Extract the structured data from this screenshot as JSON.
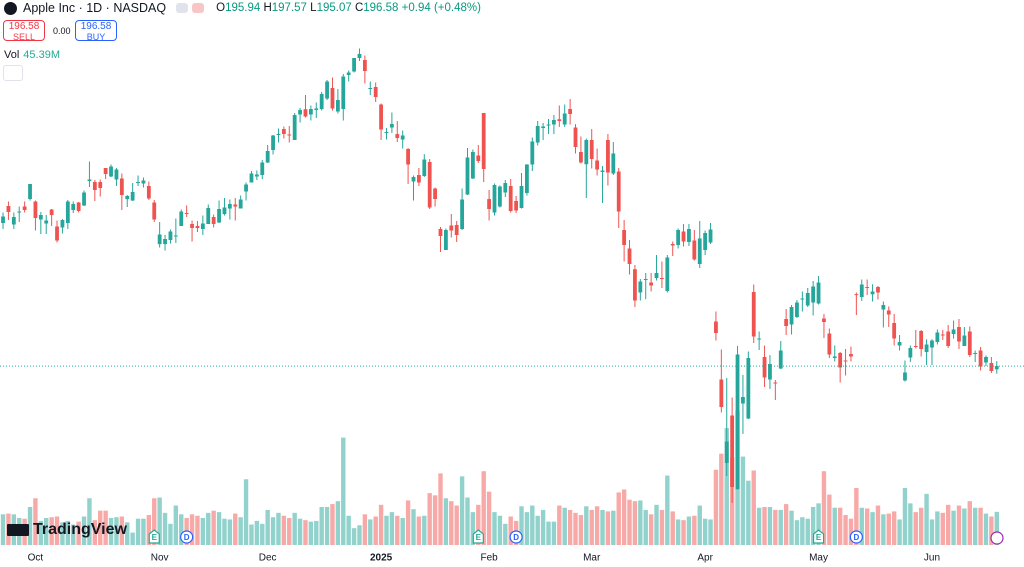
{
  "header": {
    "symbol": "Apple Inc · 1D · NASDAQ",
    "o_label": "O",
    "open": "195.94",
    "h_label": "H",
    "high": "197.57",
    "l_label": "L",
    "low": "195.07",
    "c_label": "C",
    "close": "196.58",
    "change": "+0.94 (+0.48%)",
    "sell_price": "196.58",
    "sell": "SELL",
    "spread": "0.00",
    "buy_price": "196.58",
    "buy": "BUY",
    "volume_label": "Vol",
    "volume": "45.39M",
    "brand": "TradingView"
  },
  "chart_data": {
    "type": "candlestick",
    "up_color": "#26a69a",
    "down_color": "#ef5350",
    "volume_up_color": "#92d2cc",
    "volume_down_color": "#f7a9a7",
    "xlim": [
      -0.56,
      189.04
    ],
    "ylim": [
      160.8,
      269.8
    ],
    "volume_ylim": [
      0,
      746
    ],
    "last_price_line": true,
    "xticks": [
      {
        "value": 6,
        "label": "Oct"
      },
      {
        "value": 29,
        "label": "Nov"
      },
      {
        "value": 49,
        "label": "Dec"
      },
      {
        "value": 70,
        "label": "2025"
      },
      {
        "value": 90,
        "label": "Feb"
      },
      {
        "value": 109,
        "label": "Mar"
      },
      {
        "value": 130,
        "label": "Apr"
      },
      {
        "value": 151,
        "label": "May"
      },
      {
        "value": 172,
        "label": "Jun"
      }
    ],
    "events": [
      "E",
      "D",
      "E",
      "D",
      "E",
      "D"
    ],
    "open": [
      225.2,
      228.6,
      224.9,
      227.3,
      228.5,
      230.0,
      229.5,
      225.9,
      225.1,
      227.9,
      224.5,
      224.3,
      225.2,
      227.8,
      229.3,
      228.7,
      233.6,
      233.4,
      233.4,
      236.2,
      234.5,
      233.9,
      234.1,
      229.98,
      229.7,
      233.3,
      233.1,
      232.6,
      229.3,
      220.97,
      220.99,
      221.8,
      222.6,
      224.6,
      227.2,
      225.0,
      224.6,
      224.0,
      225.0,
      226.4,
      225.3,
      226.98,
      228.1,
      228.9,
      228.1,
      231.5,
      233.3,
      234.5,
      234.8,
      237.3,
      239.8,
      242.9,
      243.99,
      242.9,
      241.8,
      246.9,
      247.96,
      246.9,
      247.8,
      247.99,
      250.1,
      252.2,
      247.5,
      248.0,
      254.8,
      255.5,
      258.2,
      257.8,
      252.2,
      252.4,
      248.9,
      243.4,
      244.3,
      242.98,
      241.9,
      240.0,
      233.5,
      234.8,
      234.6,
      237.4,
      232.1,
      224.0,
      219.8,
      224.7,
      224.8,
      224.0,
      230.9,
      234.1,
      238.7,
      247.2,
      229.99,
      227.3,
      228.5,
      231.3,
      232.6,
      229.6,
      228.2,
      231.2,
      236.9,
      241.3,
      244.2,
      244.7,
      244.9,
      245.95,
      244.9,
      248.0,
      244.3,
      239.4,
      236.95,
      241.8,
      237.7,
      235.4,
      241.8,
      235.1,
      235.5,
      223.8,
      220.1,
      215.95,
      211.3,
      213.8,
      213.3,
      214.2,
      214.2,
      211.6,
      221.0,
      220.8,
      223.5,
      221.4,
      221.7,
      217.0,
      219.8,
      221.3,
      205.5,
      193.9,
      177.2,
      186.7,
      171.95,
      189.1,
      186.1,
      211.4,
      201.9,
      198.4,
      193.9,
      193.3,
      196.1,
      206.0,
      204.9,
      206.4,
      210.0,
      208.7,
      209.3,
      209.1,
      206.1,
      203.1,
      198.2,
      199.2,
      197.7,
      199.0,
      210.97,
      210.4,
      212.4,
      210.95,
      212.4,
      207.9,
      207.7,
      205.2,
      200.7,
      193.7,
      198.3,
      200.6,
      203.6,
      199.4,
      200.3,
      201.4,
      202.9,
      203.5,
      203.0,
      204.4,
      200.6,
      203.5,
      199.1,
      199.7,
      197.3,
      197.2,
      195.94
    ],
    "high": [
      227.3,
      229.5,
      227.3,
      228.5,
      229.5,
      233.0,
      229.7,
      227.4,
      226.8,
      228.0,
      225.7,
      225.98,
      229.8,
      229.5,
      229.4,
      231.7,
      237.5,
      233.8,
      233.9,
      236.2,
      236.9,
      236.2,
      235.1,
      230.8,
      233.2,
      234.7,
      234.3,
      233.5,
      229.8,
      225.4,
      222.8,
      223.9,
      226.1,
      227.9,
      228.7,
      225.7,
      225.6,
      226.7,
      228.9,
      226.9,
      229.7,
      230.2,
      229.9,
      230.2,
      230.7,
      233.3,
      235.6,
      235.7,
      237.8,
      240.8,
      242.8,
      244.1,
      244.5,
      244.6,
      247.2,
      248.2,
      250.8,
      248.7,
      249.3,
      251.4,
      253.8,
      254.3,
      252.0,
      255.0,
      255.7,
      258.2,
      260.1,
      258.7,
      253.5,
      253.3,
      249.1,
      244.2,
      247.3,
      245.6,
      243.7,
      240.2,
      234.7,
      236.2,
      238.96,
      238.0,
      232.3,
      224.4,
      224.1,
      227.0,
      225.6,
      232.1,
      240.2,
      239.9,
      240.8,
      247.2,
      231.8,
      233.1,
      232.7,
      233.8,
      234.0,
      230.6,
      235.2,
      236.96,
      242.3,
      245.6,
      245.2,
      246.0,
      246.8,
      248.7,
      248.9,
      250.0,
      244.98,
      242.5,
      242.1,
      244.0,
      240.1,
      236.6,
      243.0,
      241.4,
      236.2,
      225.8,
      221.8,
      216.8,
      214.0,
      215.2,
      215.2,
      218.8,
      217.5,
      218.8,
      221.5,
      224.1,
      225.0,
      224.99,
      223.8,
      225.6,
      223.7,
      225.2,
      207.5,
      199.9,
      194.2,
      190.3,
      200.6,
      194.8,
      199.5,
      212.9,
      203.5,
      200.7,
      198.8,
      193.8,
      201.6,
      208.0,
      208.8,
      209.8,
      211.5,
      212.2,
      213.6,
      214.6,
      206.99,
      204.1,
      200.7,
      199.4,
      200.0,
      200.5,
      211.3,
      213.9,
      213.9,
      212.96,
      212.6,
      209.5,
      208.5,
      207.0,
      202.8,
      197.7,
      200.7,
      203.8,
      203.8,
      201.96,
      201.96,
      203.9,
      203.8,
      204.8,
      205.7,
      206.0,
      204.4,
      204.5,
      199.7,
      200.4,
      198.7,
      198.4,
      197.57
    ],
    "low": [
      224.0,
      225.8,
      224.0,
      225.4,
      227.3,
      229.7,
      223.7,
      223.0,
      223.0,
      224.6,
      221.3,
      223.1,
      224.0,
      227.2,
      227.3,
      228.6,
      232.4,
      229.6,
      230.5,
      234.0,
      234.4,
      232.6,
      227.8,
      228.4,
      229.6,
      232.6,
      232.3,
      229.8,
      225.4,
      220.3,
      219.7,
      221.1,
      221.2,
      224.6,
      226.4,
      221.5,
      223.4,
      222.8,
      225.0,
      224.3,
      225.2,
      226.7,
      225.9,
      225.7,
      228.1,
      229.7,
      233.3,
      233.8,
      233.97,
      237.2,
      238.9,
      241.3,
      242.1,
      241.3,
      241.8,
      245.3,
      246.3,
      245.7,
      246.2,
      247.7,
      249.8,
      247.7,
      247.1,
      245.7,
      253.5,
      255.3,
      257.6,
      253.1,
      250.8,
      249.4,
      241.8,
      241.9,
      243.2,
      241.4,
      240.1,
      233.0,
      229.7,
      232.6,
      234.4,
      228.0,
      228.5,
      219.4,
      219.8,
      222.3,
      221.4,
      223.8,
      230.8,
      234.0,
      237.2,
      233.4,
      225.7,
      226.7,
      228.3,
      230.4,
      227.3,
      227.2,
      228.1,
      230.7,
      235.6,
      240.7,
      241.8,
      243.0,
      243.0,
      244.4,
      244.4,
      244.9,
      239.1,
      237.1,
      230.2,
      236.1,
      234.7,
      229.2,
      232.7,
      234.8,
      224.2,
      217.5,
      214.9,
      208.4,
      209.7,
      209.97,
      211.5,
      213.7,
      212.2,
      211.3,
      218.6,
      220.1,
      220.5,
      220.6,
      217.7,
      216.2,
      218.8,
      221.0,
      201.7,
      187.3,
      174.6,
      169.2,
      171.9,
      183.0,
      186.0,
      201.2,
      199.8,
      192.4,
      192.0,
      189.8,
      195.97,
      202.8,
      202.9,
      206.2,
      207.5,
      208.4,
      206.7,
      208.9,
      202.2,
      198.2,
      197.5,
      193.3,
      194.7,
      197.5,
      206.8,
      209.6,
      210.8,
      209.5,
      209.9,
      204.3,
      204.4,
      200.7,
      199.7,
      193.5,
      197.4,
      200.1,
      198.5,
      196.8,
      196.8,
      200.9,
      201.8,
      200.2,
      202.1,
      200.0,
      200.6,
      198.4,
      197.4,
      195.7,
      196.6,
      195.2,
      195.07
    ],
    "close": [
      226.5,
      227.4,
      226.4,
      227.5,
      227.8,
      233.0,
      226.2,
      226.8,
      225.7,
      226.8,
      221.7,
      225.8,
      229.5,
      229.0,
      227.6,
      231.3,
      233.9,
      231.8,
      232.2,
      235.0,
      236.5,
      235.9,
      230.8,
      230.6,
      231.4,
      233.4,
      233.7,
      230.1,
      225.9,
      222.9,
      222.0,
      223.5,
      222.7,
      227.5,
      227.0,
      224.2,
      224.2,
      225.1,
      228.2,
      225.0,
      228.0,
      228.3,
      229.0,
      228.5,
      229.9,
      232.9,
      235.1,
      234.9,
      237.3,
      239.6,
      242.7,
      243.0,
      243.0,
      242.8,
      246.8,
      247.8,
      246.5,
      248.0,
      248.1,
      251.0,
      253.5,
      248.1,
      249.8,
      254.5,
      255.3,
      258.2,
      259.0,
      255.6,
      252.2,
      250.4,
      243.9,
      243.4,
      245.0,
      242.2,
      242.7,
      236.9,
      234.4,
      233.3,
      237.9,
      228.3,
      230.0,
      222.6,
      223.8,
      223.7,
      222.8,
      229.9,
      238.3,
      239.4,
      237.6,
      236.0,
      228.0,
      232.8,
      232.5,
      233.2,
      227.6,
      227.7,
      232.6,
      236.9,
      241.5,
      244.6,
      244.5,
      244.9,
      245.8,
      245.6,
      247.1,
      247.0,
      240.4,
      237.3,
      241.8,
      238.0,
      235.9,
      235.7,
      235.3,
      239.1,
      227.5,
      220.8,
      217.0,
      209.7,
      213.5,
      214.0,
      212.7,
      215.2,
      214.1,
      218.3,
      220.7,
      223.8,
      221.5,
      224.0,
      217.9,
      222.1,
      223.2,
      223.9,
      203.2,
      188.4,
      181.5,
      172.4,
      198.9,
      190.4,
      198.2,
      202.5,
      202.1,
      194.3,
      197.0,
      193.2,
      199.7,
      204.6,
      208.4,
      209.3,
      210.1,
      211.2,
      212.5,
      213.3,
      205.4,
      198.9,
      198.5,
      196.3,
      197.5,
      198.5,
      210.8,
      212.9,
      212.3,
      211.5,
      211.3,
      208.8,
      206.9,
      202.1,
      201.4,
      195.3,
      200.2,
      200.4,
      200.0,
      200.9,
      201.7,
      203.3,
      202.8,
      200.6,
      203.9,
      201.5,
      202.7,
      198.8,
      199.2,
      196.5,
      198.4,
      195.6,
      196.58
    ],
    "volume": [
      42,
      43,
      42,
      37,
      36,
      52,
      64,
      33,
      37,
      38,
      39,
      31,
      33,
      28,
      32,
      39,
      64,
      34,
      47,
      47,
      37,
      38,
      39,
      31,
      17,
      36,
      36,
      41,
      64,
      65,
      44,
      29,
      54,
      42,
      37,
      42,
      40,
      37,
      44,
      47,
      45,
      36,
      35,
      43,
      38,
      90,
      28,
      33,
      29,
      48,
      38,
      44,
      40,
      37,
      44,
      36,
      34,
      32,
      33,
      52,
      52,
      56,
      60,
      147,
      40,
      23,
      27,
      42,
      35,
      39,
      55,
      40,
      45,
      40,
      37,
      61,
      49,
      39,
      40,
      71,
      68,
      98,
      64,
      60,
      54,
      94,
      65,
      45,
      55,
      101,
      73,
      45,
      40,
      29,
      39,
      33,
      53,
      45,
      54,
      40,
      48,
      32,
      32,
      54,
      51,
      48,
      44,
      41,
      53,
      48,
      53,
      48,
      46,
      47,
      72,
      76,
      62,
      60,
      61,
      48,
      42,
      55,
      48,
      95,
      46,
      35,
      34,
      39,
      40,
      54,
      36,
      35,
      103,
      125,
      160,
      120,
      184,
      121,
      88,
      102,
      51,
      52,
      52,
      48,
      48,
      56,
      47,
      34,
      38,
      36,
      52,
      57,
      101,
      69,
      51,
      51,
      41,
      36,
      78,
      51,
      50,
      45,
      54,
      42,
      43,
      46,
      35,
      78,
      57,
      45,
      51,
      70,
      35,
      46,
      44,
      55,
      47,
      54,
      50,
      60,
      51,
      51,
      43,
      39,
      45.39
    ]
  }
}
